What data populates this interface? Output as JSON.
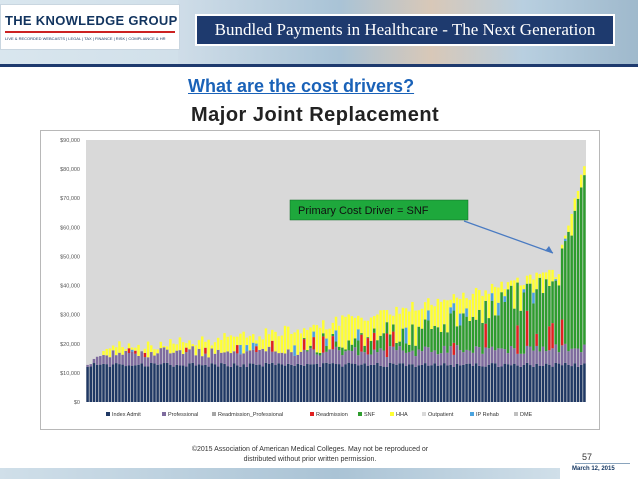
{
  "header": {
    "logo": "THE KNOWLEDGE GROUP",
    "logo_tagline": "LIVE & RECORDED WEBCASTS | LEGAL | TAX | FINANCE | RISK | COMPLIANCE & HR",
    "title": "Bundled Payments in Healthcare - The Next Generation"
  },
  "slide": {
    "question": "What are the cost drivers?",
    "heading": "Major Joint Replacement",
    "copyright": "©2015 Association of American Medical Colleges. May not be reproduced or distributed without prior written permission.",
    "page": "57",
    "date": "March 12, 2015"
  },
  "chart_data": {
    "type": "bar",
    "stacked": true,
    "ylim": [
      0,
      90000
    ],
    "y_ticks": [
      "$0",
      "$10,000",
      "$20,000",
      "$30,000",
      "$40,000",
      "$50,000",
      "$60,000",
      "$70,000",
      "$80,000",
      "$90,000"
    ],
    "y_tick_values": [
      0,
      10000,
      20000,
      30000,
      40000,
      50000,
      60000,
      70000,
      80000,
      90000
    ],
    "grid": false,
    "legend_position": "bottom",
    "annotation": "Primary Cost Driver = SNF",
    "annotation_color": "#1ea83c",
    "plot_background": "#d9d9d9",
    "n_bars": 157,
    "approx_totals": {
      "first": 12000,
      "last": 81000,
      "shape": "gradually increasing, steep rise in last ~8 bars"
    },
    "series": [
      {
        "name": "Index Admit",
        "color": "#1f3864",
        "approx_value": 13500
      },
      {
        "name": "Professional",
        "color": "#7e6b9e"
      },
      {
        "name": "Readmission_Professional",
        "color": "#a6a6a6"
      },
      {
        "name": "Readmission",
        "color": "#e02020"
      },
      {
        "name": "SNF",
        "color": "#2e9c2e"
      },
      {
        "name": "HHA",
        "color": "#ffff33"
      },
      {
        "name": "Outpatient",
        "color": "#d9d9d9"
      },
      {
        "name": "IP Rehab",
        "color": "#4aa3df"
      },
      {
        "name": "DME",
        "color": "#c0c0c0"
      }
    ]
  }
}
